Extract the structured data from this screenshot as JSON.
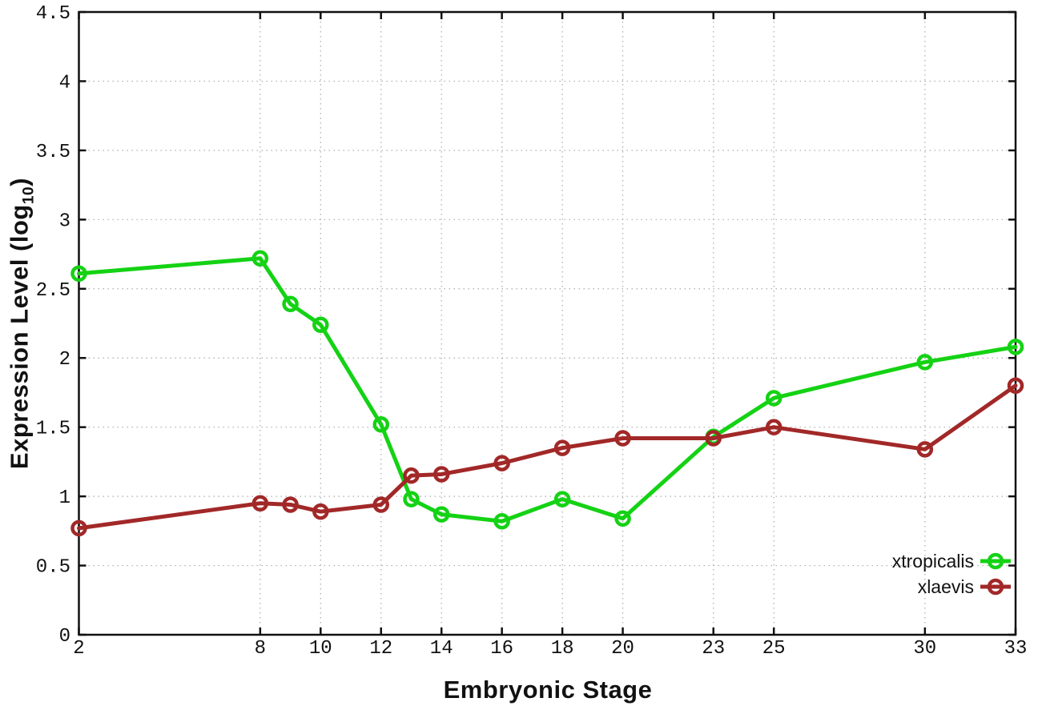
{
  "chart_data": {
    "type": "line",
    "title": "",
    "xlabel": "Embryonic Stage",
    "ylabel": "Expression Level (log10)",
    "ylabel_parts": {
      "prefix": "Expression Level (log",
      "subscript": "10",
      "suffix": ")"
    },
    "xlim": [
      2,
      33
    ],
    "ylim": [
      0,
      4.5
    ],
    "x_ticks": [
      2,
      8,
      10,
      12,
      14,
      16,
      18,
      20,
      23,
      25,
      30,
      33
    ],
    "y_ticks": [
      0,
      0.5,
      1,
      1.5,
      2,
      2.5,
      3,
      3.5,
      4,
      4.5
    ],
    "y_tick_labels": [
      "0",
      "0.5",
      "1",
      "1.5",
      "2",
      "2.5",
      "3",
      "3.5",
      "4",
      "4.5"
    ],
    "grid": true,
    "grid_style": "dotted",
    "legend_position": "bottom-right-inside",
    "marker": "open-circle",
    "colors": {
      "xtropicalis": "#14d214",
      "xlaevis": "#a22828",
      "grid": "#ababab",
      "axis": "#111111"
    },
    "series": [
      {
        "name": "xtropicalis",
        "color": "#14d214",
        "x": [
          2,
          8,
          9,
          10,
          12,
          13,
          14,
          16,
          18,
          20,
          23,
          25,
          30,
          33
        ],
        "y": [
          2.61,
          2.72,
          2.39,
          2.24,
          1.52,
          0.98,
          0.87,
          0.82,
          0.98,
          0.84,
          1.43,
          1.71,
          1.97,
          2.08
        ]
      },
      {
        "name": "xlaevis",
        "color": "#a22828",
        "x": [
          2,
          8,
          9,
          10,
          12,
          13,
          14,
          16,
          18,
          20,
          23,
          25,
          30,
          33
        ],
        "y": [
          0.77,
          0.95,
          0.94,
          0.89,
          0.94,
          1.15,
          1.16,
          1.24,
          1.35,
          1.42,
          1.42,
          1.5,
          1.34,
          1.8
        ]
      }
    ]
  }
}
